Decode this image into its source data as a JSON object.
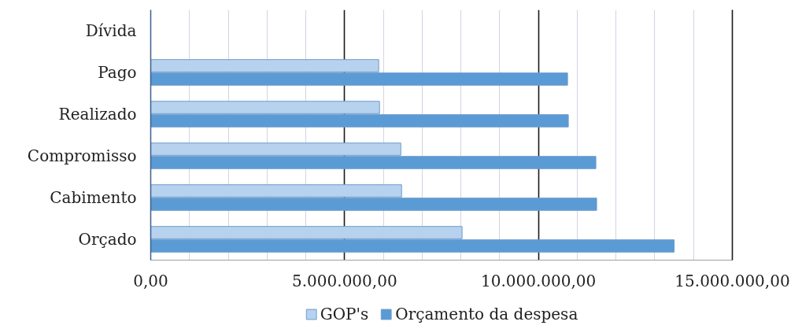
{
  "chart_data": {
    "type": "bar",
    "orientation": "horizontal",
    "categories": [
      "Dívida",
      "Pago",
      "Realizado",
      "Compromisso",
      "Cabimento",
      "Orçado"
    ],
    "series": [
      {
        "name": "GOP's",
        "color": "#b7d2ee",
        "values": [
          null,
          5880000,
          5900000,
          6450000,
          6470000,
          8030000
        ]
      },
      {
        "name": "Orçamento da despesa",
        "color": "#5b9bd5",
        "values": [
          null,
          10750000,
          10770000,
          11480000,
          11500000,
          13500000
        ]
      }
    ],
    "xlim": [
      0,
      15000000
    ],
    "xticks": [
      {
        "value": 0,
        "label": "0,00"
      },
      {
        "value": 5000000,
        "label": "5.000.000,00"
      },
      {
        "value": 10000000,
        "label": "10.000.000,00"
      },
      {
        "value": 15000000,
        "label": "15.000.000,00"
      }
    ],
    "grid": "x",
    "legend": "bottom"
  }
}
